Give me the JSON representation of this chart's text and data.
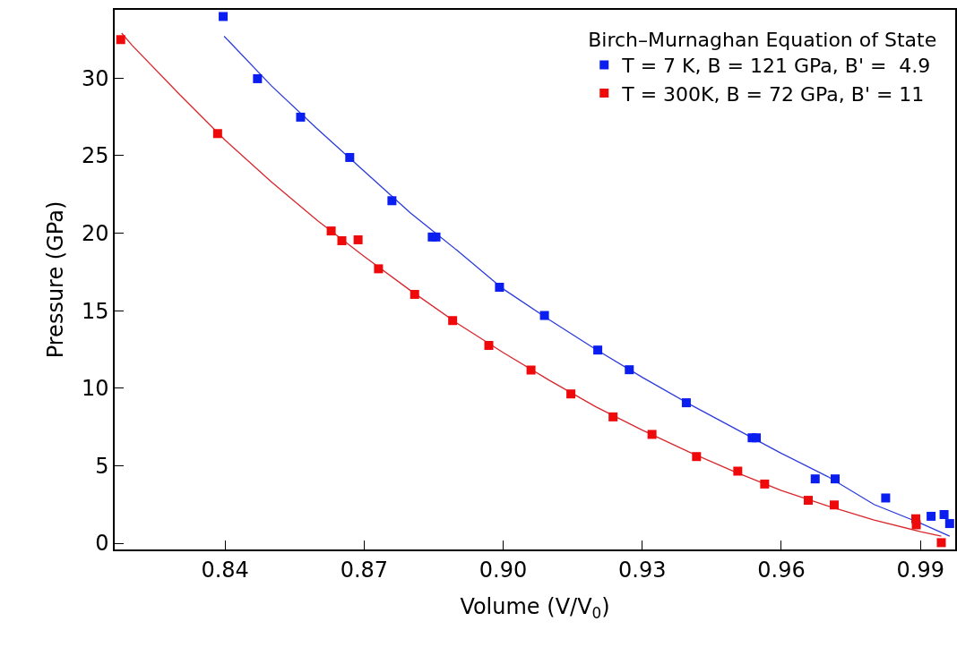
{
  "chart_data": {
    "type": "scatter",
    "xlabel": "Volume (V/V$_{0}$)",
    "ylabel": "Pressure (GPa)",
    "legend_title": "Birch–Murnaghan Equation of State",
    "legend": "top right",
    "grid": false,
    "xlim": [
      0.8162,
      0.9975
    ],
    "ylim": [
      -0.4,
      34.4
    ],
    "xticks": [
      0.84,
      0.87,
      {
        "value": 0.9,
        "label": "0.90"
      },
      0.93,
      0.96,
      0.99
    ],
    "yticks": [
      0,
      5,
      10,
      15,
      20,
      25,
      30
    ],
    "series": [
      {
        "type": "line",
        "color": "#2b3bdc",
        "marker": "none",
        "line_style": "solid",
        "x": [
          0.8398,
          0.85,
          0.86,
          0.87,
          0.88,
          0.89,
          0.9,
          0.91,
          0.92,
          0.93,
          0.94,
          0.95,
          0.96,
          0.97,
          0.98,
          0.99,
          0.9963
        ],
        "values": [
          32.7,
          29.5,
          26.7,
          24.0,
          21.3,
          18.9,
          16.4,
          14.4,
          12.5,
          10.7,
          9.0,
          7.4,
          5.8,
          4.3,
          2.5,
          1.3,
          0.46
        ]
      },
      {
        "type": "line",
        "color": "#d8262c",
        "marker": "none",
        "line_style": "solid",
        "x": [
          0.8177,
          0.82,
          0.83,
          0.84,
          0.85,
          0.86,
          0.87,
          0.88,
          0.89,
          0.9,
          0.91,
          0.92,
          0.93,
          0.94,
          0.95,
          0.96,
          0.97,
          0.98,
          0.99,
          0.9945
        ],
        "values": [
          32.9,
          32.1,
          29.0,
          26.0,
          23.3,
          20.8,
          18.5,
          16.3,
          14.2,
          12.3,
          10.5,
          8.8,
          7.3,
          5.9,
          4.6,
          3.4,
          2.4,
          1.5,
          0.75,
          0.46
        ]
      },
      {
        "name": "T = 7 K, B = 121 GPa, B' =  4.9",
        "color": "#0a1ef0",
        "marker": "square",
        "x": [
          0.8396,
          0.847,
          0.8563,
          0.8669,
          0.876,
          0.8847,
          0.8855,
          0.8992,
          0.9089,
          0.9204,
          0.9272,
          0.9395,
          0.9537,
          0.9546,
          0.9673,
          0.9716,
          0.9825,
          0.9923,
          0.9951,
          0.9963
        ],
        "values": [
          33.97,
          29.96,
          27.48,
          24.88,
          22.09,
          19.75,
          19.75,
          16.51,
          14.69,
          12.46,
          11.19,
          9.06,
          6.8,
          6.8,
          4.15,
          4.15,
          2.92,
          1.74,
          1.85,
          1.27
        ]
      },
      {
        "name": "T = 300K, B = 72 GPa, B' = 11",
        "color": "#ee0a0a",
        "marker": "square",
        "x": [
          0.8175,
          0.8384,
          0.8629,
          0.8652,
          0.8687,
          0.8731,
          0.8809,
          0.8891,
          0.8969,
          0.906,
          0.9146,
          0.9237,
          0.9321,
          0.9417,
          0.9506,
          0.9564,
          0.9658,
          0.9714,
          0.989,
          0.9891,
          0.9945
        ],
        "values": [
          32.48,
          26.42,
          20.14,
          19.51,
          19.57,
          17.7,
          16.05,
          14.36,
          12.76,
          11.17,
          9.63,
          8.15,
          7.02,
          5.59,
          4.65,
          3.82,
          2.77,
          2.47,
          1.58,
          1.19,
          0.04
        ]
      }
    ]
  }
}
